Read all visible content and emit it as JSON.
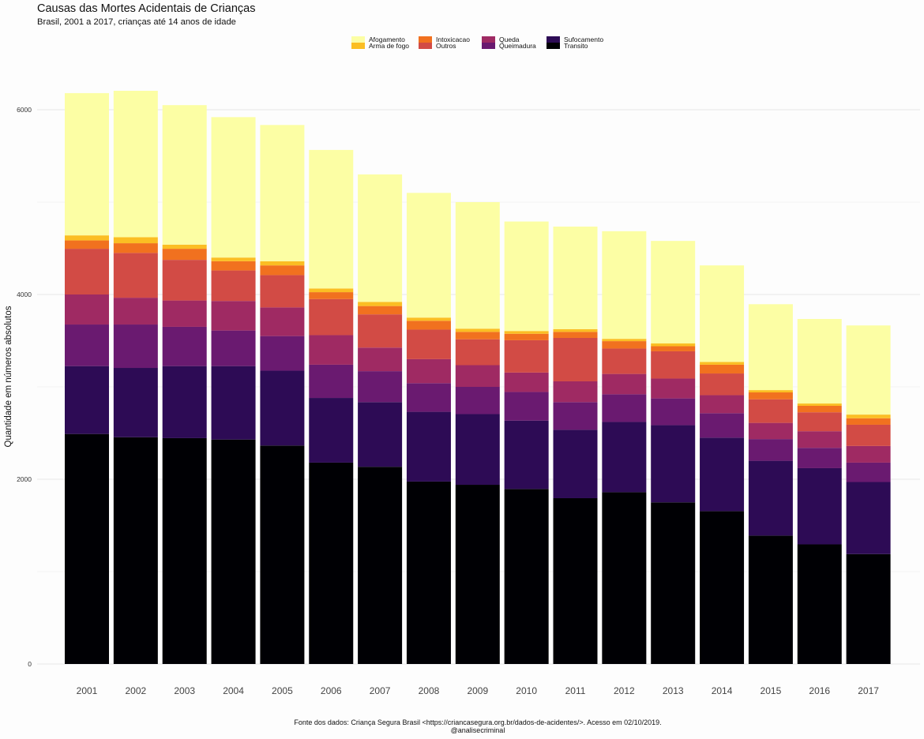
{
  "chart_data": {
    "type": "bar",
    "stacked": true,
    "title": "Causas das Mortes Acidentais de Crianças",
    "subtitle": "Brasil, 2001 a 2017, crianças até 14 anos de idade",
    "xlabel": "",
    "ylabel": "Quantidade em números absolutos",
    "ylim": [
      0,
      6400
    ],
    "yticks": [
      0,
      2000,
      4000,
      6000
    ],
    "grid": true,
    "legend_position": "top",
    "caption": [
      "Fonte dos dados: Criança Segura Brasil <https://criancasegura.org.br/dados-de-acidentes/>. Acesso em 02/10/2019.",
      "@analisecriminal"
    ],
    "categories": [
      "2001",
      "2002",
      "2003",
      "2004",
      "2005",
      "2006",
      "2007",
      "2008",
      "2009",
      "2010",
      "2011",
      "2012",
      "2013",
      "2014",
      "2015",
      "2016",
      "2017"
    ],
    "series": [
      {
        "name": "Transito",
        "color": "#000004",
        "values": [
          2490,
          2455,
          2445,
          2430,
          2365,
          2180,
          2135,
          1975,
          1940,
          1895,
          1795,
          1860,
          1750,
          1655,
          1390,
          1295,
          1190
        ]
      },
      {
        "name": "Sufocamento",
        "color": "#2d0b55",
        "values": [
          735,
          750,
          780,
          795,
          810,
          700,
          700,
          755,
          765,
          740,
          740,
          760,
          835,
          795,
          810,
          825,
          780
        ]
      },
      {
        "name": "Queimadura",
        "color": "#6a1a70",
        "values": [
          450,
          470,
          425,
          385,
          375,
          360,
          335,
          310,
          295,
          310,
          300,
          300,
          290,
          265,
          235,
          220,
          210
        ]
      },
      {
        "name": "Queda",
        "color": "#9f2a63",
        "values": [
          325,
          290,
          285,
          320,
          310,
          320,
          255,
          260,
          235,
          210,
          225,
          220,
          215,
          195,
          175,
          180,
          180
        ]
      },
      {
        "name": "Outros",
        "color": "#d24b45",
        "values": [
          495,
          485,
          440,
          330,
          350,
          390,
          360,
          320,
          280,
          350,
          470,
          275,
          295,
          235,
          255,
          205,
          230
        ]
      },
      {
        "name": "Intoxicacao",
        "color": "#f1711f",
        "values": [
          90,
          105,
          120,
          100,
          105,
          75,
          90,
          95,
          80,
          70,
          65,
          80,
          55,
          95,
          75,
          70,
          70
        ]
      },
      {
        "name": "Arma de fogo",
        "color": "#fbbe23",
        "values": [
          55,
          65,
          45,
          40,
          45,
          40,
          45,
          35,
          35,
          30,
          30,
          25,
          30,
          30,
          25,
          25,
          40
        ]
      },
      {
        "name": "Afogamento",
        "color": "#fcfea4",
        "values": [
          1540,
          1585,
          1510,
          1520,
          1475,
          1500,
          1380,
          1350,
          1370,
          1185,
          1110,
          1165,
          1110,
          1045,
          930,
          915,
          965
        ]
      }
    ]
  }
}
